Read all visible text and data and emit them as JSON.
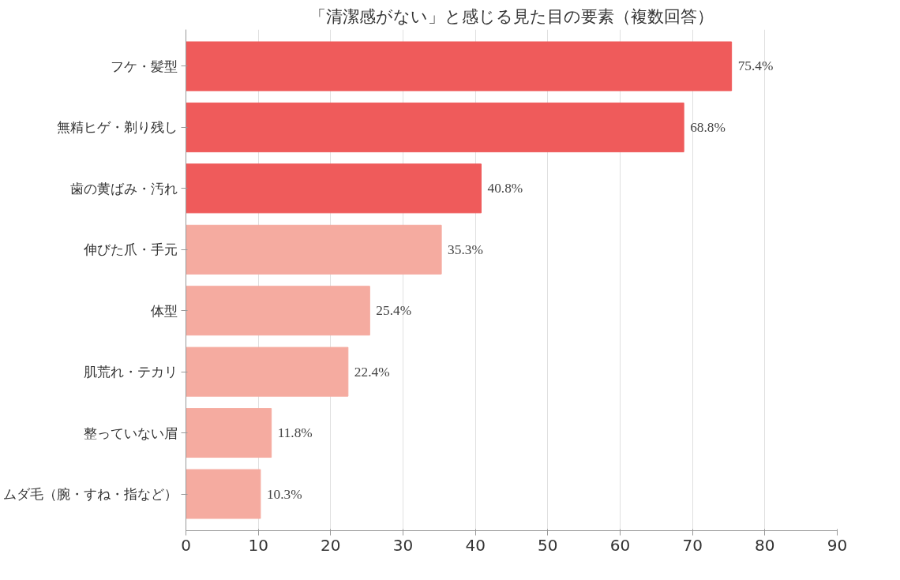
{
  "chart_data": {
    "type": "bar",
    "orientation": "horizontal",
    "title": "「清潔感がない」と感じる見た目の要素（複数回答）",
    "categories": [
      "フケ・髪型",
      "無精ヒゲ・剃り残し",
      "歯の黄ばみ・汚れ",
      "伸びた爪・手元",
      "体型",
      "肌荒れ・テカリ",
      "整っていない眉",
      "ムダ毛（腕・すね・指など）"
    ],
    "values": [
      75.4,
      68.8,
      40.8,
      35.3,
      25.4,
      22.4,
      11.8,
      10.3
    ],
    "value_labels": [
      "75.4%",
      "68.8%",
      "40.8%",
      "35.3%",
      "25.4%",
      "22.4%",
      "11.8%",
      "10.3%"
    ],
    "colors": [
      "#ef5b5b",
      "#ef5b5b",
      "#ef5b5b",
      "#f5aba0",
      "#f5aba0",
      "#f5aba0",
      "#f5aba0",
      "#f5aba0"
    ],
    "xlim": [
      0,
      90
    ],
    "xticks": [
      0,
      10,
      20,
      30,
      40,
      50,
      60,
      70,
      80,
      90
    ],
    "grid": "x"
  }
}
